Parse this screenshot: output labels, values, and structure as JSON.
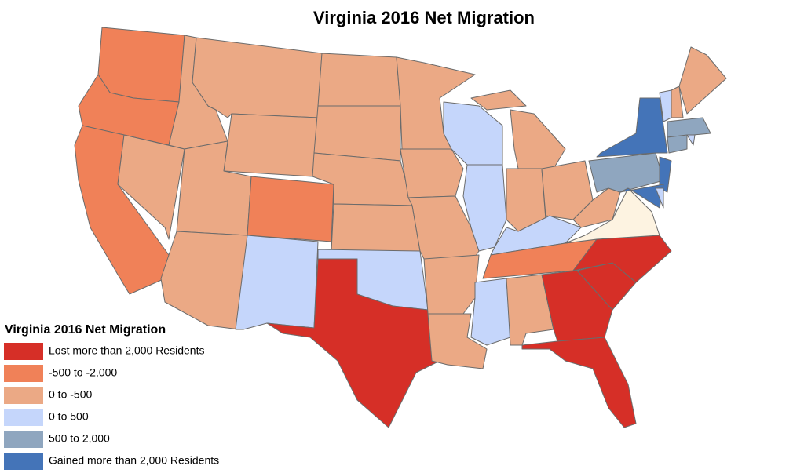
{
  "title": "Virginia 2016 Net Migration",
  "legend": {
    "title": "Virginia 2016 Net Migration",
    "items": [
      {
        "label": "Lost more than 2,000 Residents",
        "color": "#d62f27"
      },
      {
        "label": "-500 to -2,000",
        "color": "#f08158"
      },
      {
        "label": "0 to -500",
        "color": "#eba985"
      },
      {
        "label": "0 to 500",
        "color": "#c5d6fb"
      },
      {
        "label": "500 to 2,000",
        "color": "#8fa6bf"
      },
      {
        "label": "Gained more than 2,000 Residents",
        "color": "#4474b8"
      }
    ]
  }
}
